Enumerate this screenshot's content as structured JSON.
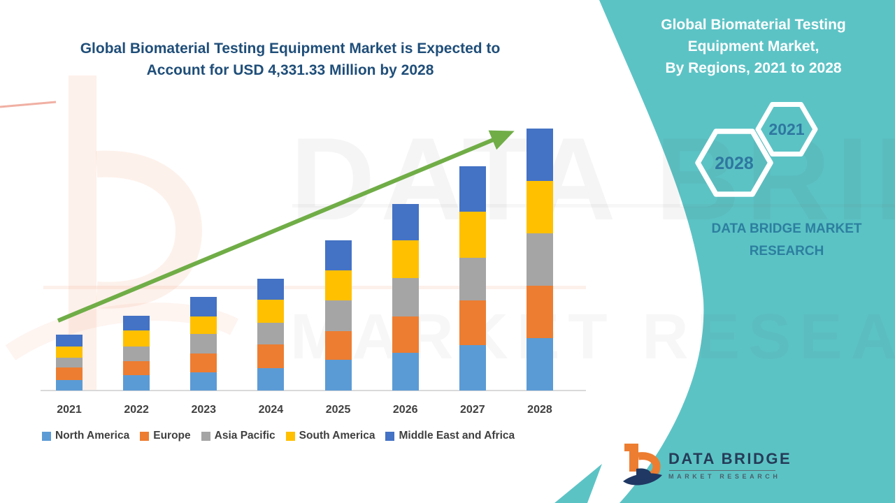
{
  "header": {
    "title_line1": "Global Biomaterial Testing Equipment Market is Expected to",
    "title_line2": "Account for USD 4,331.33 Million by 2028"
  },
  "chart_data": {
    "type": "bar",
    "stacked": true,
    "title": "Global Biomaterial Testing Equipment Market is Expected to Account for USD 4,331.33 Million by 2028",
    "unit": "USD Million",
    "categories": [
      "2021",
      "2022",
      "2023",
      "2024",
      "2025",
      "2026",
      "2027",
      "2028"
    ],
    "series": [
      {
        "name": "North America",
        "color": "#5B9BD5",
        "values": [
          173,
          258,
          297,
          370,
          512,
          627,
          751,
          866.27
        ]
      },
      {
        "name": "Europe",
        "color": "#ED7D31",
        "values": [
          208,
          231,
          320,
          393,
          474,
          593,
          739,
          866.27
        ]
      },
      {
        "name": "Asia Pacific",
        "color": "#A5A5A5",
        "values": [
          165,
          243,
          320,
          355,
          508,
          639,
          705,
          866.27
        ]
      },
      {
        "name": "South America",
        "color": "#FFC000",
        "values": [
          181,
          258,
          285,
          378,
          493,
          624,
          759,
          866.26
        ]
      },
      {
        "name": "Middle East and Africa",
        "color": "#4472C4",
        "values": [
          196,
          243,
          327,
          347,
          497,
          604,
          754,
          866.26
        ]
      }
    ],
    "totals_estimated": [
      923,
      1233,
      1549,
      1843,
      2484,
      3087,
      3708,
      4331.33
    ],
    "ylim": [
      0,
      4331.33
    ],
    "y_axis_visible": false,
    "grid": false,
    "legend_position": "bottom",
    "annotations": [
      "green upward trend arrow from 2021 toward 2028"
    ]
  },
  "panel": {
    "accent_color": "#5CC3C5",
    "title_lines": [
      "Global Biomaterial Testing",
      "Equipment Market,",
      "By Regions, 2021 to 2028"
    ],
    "hexagons": [
      {
        "label": "2021"
      },
      {
        "label": "2028"
      }
    ],
    "brand_line1": "DATA BRIDGE MARKET",
    "brand_line2": "RESEARCH"
  },
  "logo": {
    "name": "DATA BRIDGE",
    "subtitle": "MARKET RESEARCH"
  },
  "watermarks": {
    "text_line1": "DATA BRIDGE",
    "text_line2": "MARKET RESEARCH"
  },
  "colors": {
    "title_text": "#1F4E79",
    "trend_arrow": "#70AD47",
    "panel_teal": "#5CC3C5",
    "hexagon_year_text": "#2E77A0",
    "logo_orange": "#ED7D31",
    "logo_navy": "#1F3864",
    "axis_line": "#D9D9D9",
    "axis_label_text": "#3F3F3F"
  }
}
